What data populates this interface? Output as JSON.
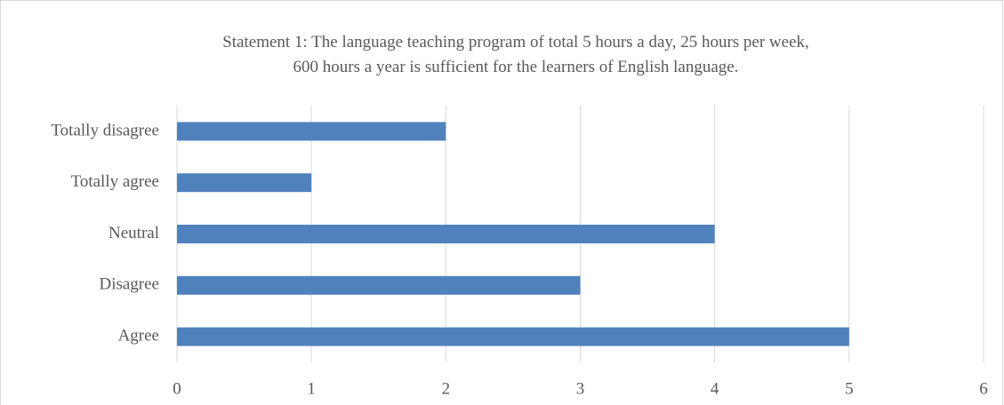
{
  "chart_data": {
    "type": "bar",
    "orientation": "horizontal",
    "title": "Statement 1: The language teaching program of total 5 hours a day, 25 hours per week, 600 hours a year is sufficient for the learners of English language.",
    "categories": [
      "Agree",
      "Disagree",
      "Neutral",
      "Totally agree",
      "Totally disagree"
    ],
    "values": [
      5,
      3,
      4,
      1,
      2
    ],
    "color": "#4f81bd",
    "xlim": [
      0,
      6
    ],
    "xticks": [
      0,
      1,
      2,
      3,
      4,
      5,
      6
    ],
    "grid": true
  }
}
